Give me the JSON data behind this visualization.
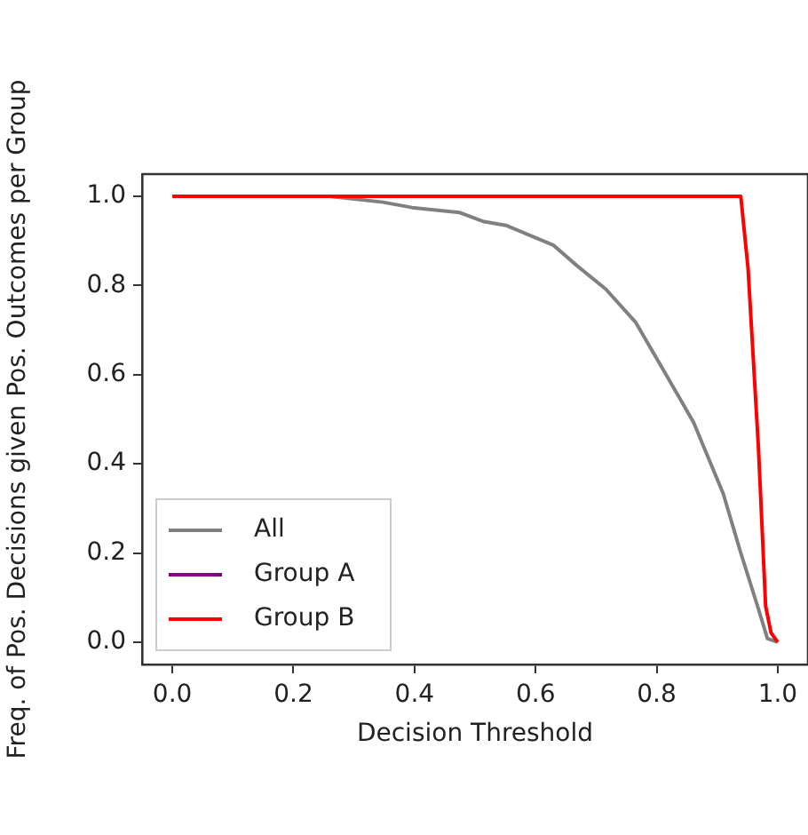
{
  "chart_data": {
    "type": "line",
    "xlabel": "Decision Threshold",
    "ylabel": "Freq. of Pos. Decisions given Pos. Outcomes per Group",
    "xlim": [
      -0.05,
      1.05
    ],
    "ylim": [
      -0.05,
      1.05
    ],
    "xticks": [
      {
        "value": 0,
        "label": "0.0"
      },
      {
        "value": 0.2,
        "label": "0.2"
      },
      {
        "value": 0.4,
        "label": "0.4"
      },
      {
        "value": 0.6,
        "label": "0.6"
      },
      {
        "value": 0.8,
        "label": "0.8"
      },
      {
        "value": 1,
        "label": "1.0"
      }
    ],
    "yticks": [
      {
        "value": 0,
        "label": "0.0"
      },
      {
        "value": 0.2,
        "label": "0.2"
      },
      {
        "value": 0.4,
        "label": "0.4"
      },
      {
        "value": 0.6,
        "label": "0.6"
      },
      {
        "value": 0.8,
        "label": "0.8"
      },
      {
        "value": 1,
        "label": "1.0"
      }
    ],
    "grid": false,
    "legend": "bottom left",
    "marker": "none",
    "line_style": "solid",
    "series": [
      {
        "name": "All",
        "color": "#808080",
        "x": [
          0.26,
          0.348,
          0.396,
          0.474,
          0.513,
          0.551,
          0.629,
          0.668,
          0.716,
          0.765,
          0.813,
          0.861,
          0.91,
          0.939,
          0.968,
          0.983,
          1.0
        ],
        "values": [
          1.0,
          0.987,
          0.975,
          0.964,
          0.944,
          0.935,
          0.891,
          0.845,
          0.792,
          0.718,
          0.606,
          0.493,
          0.333,
          0.2,
          0.075,
          0.008,
          0.0
        ]
      },
      {
        "name": "Group A",
        "color": "#800080"
      },
      {
        "name": "Group B",
        "color": "#ff0000",
        "x": [
          0,
          0.939,
          0.951,
          0.968,
          0.98,
          0.989,
          1.0
        ],
        "values": [
          1.0,
          1.0,
          0.838,
          0.44,
          0.081,
          0.021,
          0.0
        ]
      }
    ]
  }
}
